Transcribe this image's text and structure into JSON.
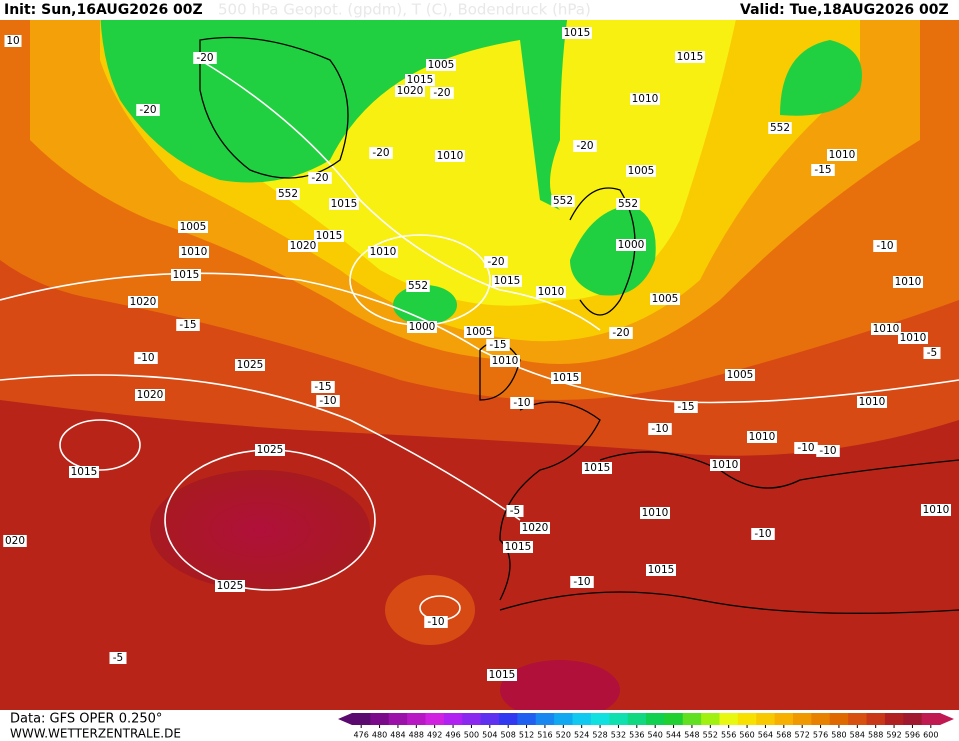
{
  "header": {
    "init": "Init: Sun,16AUG2026 00Z",
    "title": "500 hPa Geopot. (gpdm), T (C), Bodendruck (hPa)",
    "valid": "Valid: Tue,18AUG2026 00Z"
  },
  "footer": {
    "data": "Data: GFS OPER 0.250°",
    "site": "WWW.WETTERZENTRALE.DE"
  },
  "colorbar": {
    "ticks": [
      476,
      480,
      484,
      488,
      492,
      496,
      500,
      504,
      508,
      512,
      516,
      520,
      524,
      528,
      532,
      536,
      540,
      544,
      548,
      552,
      556,
      560,
      564,
      568,
      572,
      576,
      580,
      584,
      588,
      592,
      596,
      600
    ],
    "colors": [
      "#5a0a6e",
      "#7a0a8a",
      "#9a10a8",
      "#b818c4",
      "#d020e0",
      "#b020f0",
      "#8a28f0",
      "#6030f0",
      "#3038f0",
      "#2060f0",
      "#1888f0",
      "#10a8f0",
      "#10c8f0",
      "#10e0e0",
      "#10e0b0",
      "#10d880",
      "#10d050",
      "#20d030",
      "#60e020",
      "#a0f010",
      "#e8f810",
      "#f8e000",
      "#f8c800",
      "#f8b000",
      "#f09800",
      "#e88000",
      "#e06800",
      "#d85010",
      "#c83818",
      "#b02020",
      "#a01830",
      "#c01850"
    ]
  },
  "map_labels": [
    "10",
    "1015",
    "1015",
    "1005",
    "-20",
    "1015",
    "1020",
    "-20",
    "-20",
    "1010",
    "552",
    "-20",
    "-20",
    "1010",
    "1010",
    "-15",
    "1005",
    "-20",
    "552",
    "1015",
    "552",
    "552",
    "1005",
    "1015",
    "1020",
    "1000",
    "1010",
    "1010",
    "-10",
    "-20",
    "1015",
    "1015",
    "1010",
    "552",
    "1010",
    "1005",
    "1020",
    "-15",
    "1000",
    "1005",
    "-20",
    "1010",
    "1010",
    "-15",
    "-10",
    "1025",
    "1010",
    "-5",
    "1015",
    "1005",
    "-15",
    "1020",
    "-10",
    "-10",
    "-15",
    "1010",
    "-10",
    "1010",
    "-10",
    "-10",
    "1025",
    "1015",
    "1010",
    "1015",
    "1010",
    "-5",
    "1020",
    "1010",
    "-10",
    "1015",
    "020",
    "1015",
    "-10",
    "1025",
    "-10",
    "-5",
    "1015"
  ]
}
